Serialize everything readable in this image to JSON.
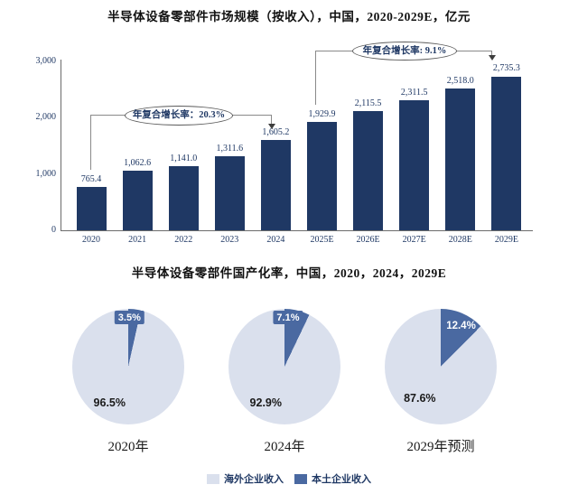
{
  "colors": {
    "bar": "#1F3864",
    "pie_dark": "#4A69A1",
    "pie_light": "#DAE0ED",
    "connector_line": "#8a8a8a",
    "navy_text": "#1F3864"
  },
  "chart_data": [
    {
      "type": "bar",
      "title": "半导体设备零部件市场规模（按收入），中国，2020-2029E，亿元",
      "categories": [
        "2020",
        "2021",
        "2022",
        "2023",
        "2024",
        "2025E",
        "2026E",
        "2027E",
        "2028E",
        "2029E"
      ],
      "values": [
        765.4,
        1062.6,
        1141.0,
        1311.6,
        1605.2,
        1929.9,
        2115.5,
        2311.5,
        2518.0,
        2735.3
      ],
      "value_labels": [
        "765.4",
        "1,062.6",
        "1,141.0",
        "1,311.6",
        "1,605.2",
        "1,929.9",
        "2,115.5",
        "2,311.5",
        "2,518.0",
        "2,735.3"
      ],
      "xlabel": "",
      "ylabel": "",
      "ylim": [
        0,
        3000
      ],
      "yticks": [
        {
          "value": 3000,
          "label": "3,000"
        },
        {
          "value": 2000,
          "label": "2,000"
        },
        {
          "value": 1000,
          "label": "1,000"
        },
        {
          "value": 0,
          "label": "0"
        }
      ],
      "grid": false,
      "annotations": [
        {
          "label": "年复合增长率：20.3%",
          "from": "2020",
          "to": "2024"
        },
        {
          "label": "年复合增长率: 9.1%",
          "from": "2025E",
          "to": "2029E"
        }
      ]
    },
    {
      "type": "pie",
      "title": "半导体设备零部件国产化率，中国，2020，2024，2029E",
      "pies": [
        {
          "label": "2020年",
          "slices": [
            {
              "name": "海外企业收入",
              "value": 96.5,
              "pct_label": "96.5%"
            },
            {
              "name": "本土企业收入",
              "value": 3.5,
              "pct_label": "3.5%"
            }
          ]
        },
        {
          "label": "2024年",
          "slices": [
            {
              "name": "海外企业收入",
              "value": 92.9,
              "pct_label": "92.9%"
            },
            {
              "name": "本土企业收入",
              "value": 7.1,
              "pct_label": "7.1%"
            }
          ]
        },
        {
          "label": "2029年预测",
          "slices": [
            {
              "name": "海外企业收入",
              "value": 87.6,
              "pct_label": "87.6%"
            },
            {
              "name": "本土企业收入",
              "value": 12.4,
              "pct_label": "12.4%"
            }
          ]
        }
      ],
      "legend": [
        {
          "name": "海外企业收入",
          "color_key": "pie_light"
        },
        {
          "name": "本土企业收入",
          "color_key": "pie_dark"
        }
      ],
      "legend_position": "bottom"
    }
  ]
}
